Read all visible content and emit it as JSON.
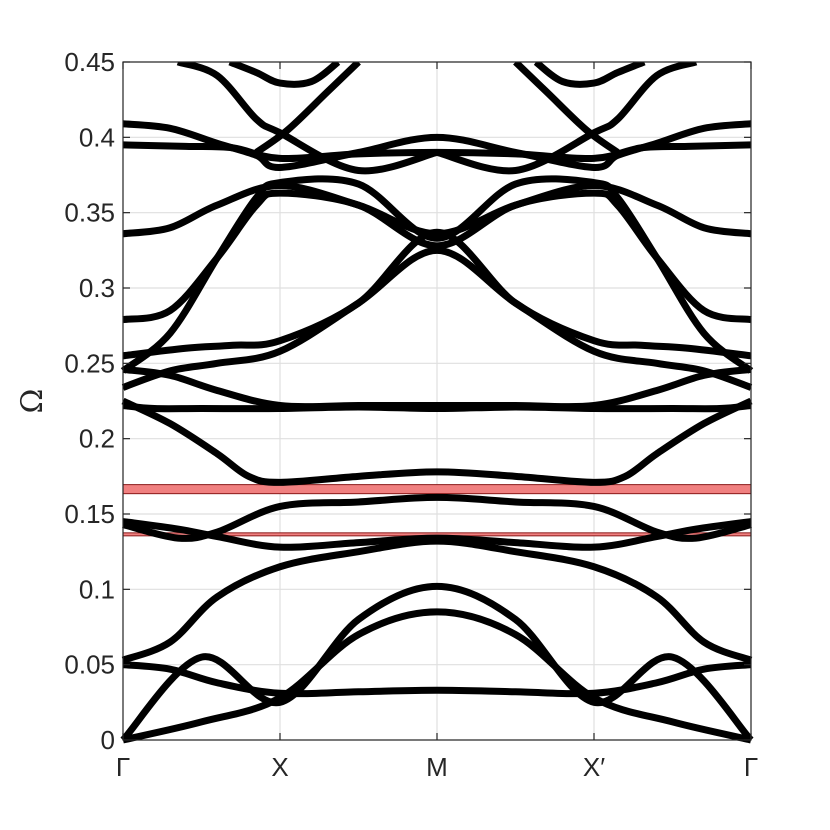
{
  "chart_data": {
    "type": "line",
    "title": "",
    "xlabel": "",
    "ylabel": "Ω",
    "ylim": [
      0,
      0.45
    ],
    "yticks": [
      {
        "value": 0,
        "label": "0"
      },
      {
        "value": 0.05,
        "label": "0.05"
      },
      {
        "value": 0.1,
        "label": "0.1"
      },
      {
        "value": 0.15,
        "label": "0.15"
      },
      {
        "value": 0.2,
        "label": "0.2"
      },
      {
        "value": 0.25,
        "label": "0.25"
      },
      {
        "value": 0.3,
        "label": "0.3"
      },
      {
        "value": 0.35,
        "label": "0.35"
      },
      {
        "value": 0.4,
        "label": "0.4"
      },
      {
        "value": 0.45,
        "label": "0.45"
      }
    ],
    "xticks": [
      {
        "value": 0,
        "label": "Γ"
      },
      {
        "value": 1,
        "label": "X"
      },
      {
        "value": 2,
        "label": "M"
      },
      {
        "value": 3,
        "label": "X′"
      },
      {
        "value": 4,
        "label": "Γ"
      }
    ],
    "xlim": [
      0,
      4
    ],
    "grid": true,
    "band_gaps": [
      {
        "ymin": 0.1635,
        "ymax": 0.1695,
        "color": "#f08080"
      },
      {
        "ymin": 0.1355,
        "ymax": 0.1375,
        "color": "#f08080"
      }
    ],
    "line_color": "#000000",
    "series": [
      {
        "x": [
          0,
          0.5,
          1,
          1.5,
          2,
          2.5,
          3,
          3.5,
          4
        ],
        "y": [
          0,
          0.012,
          0.028,
          0.07,
          0.085,
          0.07,
          0.028,
          0.012,
          0
        ]
      },
      {
        "x": [
          0,
          0.5,
          1,
          1.5,
          2,
          2.5,
          3,
          3.5,
          4
        ],
        "y": [
          0,
          0.055,
          0.025,
          0.08,
          0.102,
          0.08,
          0.025,
          0.055,
          0
        ]
      },
      {
        "x": [
          0,
          0.3,
          0.6,
          1,
          1.5,
          2,
          2.5,
          3,
          3.4,
          3.7,
          4
        ],
        "y": [
          0.05,
          0.047,
          0.038,
          0.031,
          0.032,
          0.033,
          0.032,
          0.031,
          0.038,
          0.047,
          0.05
        ]
      },
      {
        "x": [
          0,
          0.3,
          0.6,
          1,
          1.5,
          2,
          2.5,
          3,
          3.4,
          3.7,
          4
        ],
        "y": [
          0.053,
          0.065,
          0.095,
          0.115,
          0.125,
          0.132,
          0.125,
          0.115,
          0.095,
          0.065,
          0.053
        ]
      },
      {
        "x": [
          0,
          0.35,
          0.6,
          1,
          1.5,
          2,
          2.5,
          3,
          3.4,
          3.65,
          4
        ],
        "y": [
          0.145,
          0.14,
          0.135,
          0.128,
          0.131,
          0.134,
          0.131,
          0.128,
          0.135,
          0.14,
          0.145
        ]
      },
      {
        "x": [
          0,
          0.35,
          0.6,
          1,
          1.5,
          2,
          2.5,
          3,
          3.4,
          3.65,
          4
        ],
        "y": [
          0.143,
          0.134,
          0.138,
          0.155,
          0.158,
          0.161,
          0.158,
          0.155,
          0.138,
          0.134,
          0.143
        ]
      },
      {
        "x": [
          0,
          0.3,
          0.6,
          0.8,
          1,
          1.5,
          2,
          2.5,
          3,
          3.2,
          3.4,
          3.7,
          4
        ],
        "y": [
          0.225,
          0.21,
          0.19,
          0.175,
          0.171,
          0.175,
          0.178,
          0.175,
          0.171,
          0.175,
          0.19,
          0.21,
          0.225
        ]
      },
      {
        "x": [
          0,
          0.2,
          0.5,
          1,
          1.5,
          2,
          2.5,
          3,
          3.5,
          3.8,
          4
        ],
        "y": [
          0.222,
          0.22,
          0.22,
          0.22,
          0.221,
          0.22,
          0.221,
          0.22,
          0.22,
          0.22,
          0.222
        ]
      },
      {
        "x": [
          0,
          0.3,
          0.6,
          1,
          1.5,
          2,
          2.5,
          3,
          3.4,
          3.7,
          4
        ],
        "y": [
          0.246,
          0.242,
          0.232,
          0.222,
          0.222,
          0.222,
          0.222,
          0.222,
          0.232,
          0.242,
          0.246
        ]
      },
      {
        "x": [
          0,
          0.3,
          0.6,
          1,
          1.5,
          2,
          2.5,
          3,
          3.4,
          3.7,
          4
        ],
        "y": [
          0.234,
          0.245,
          0.25,
          0.258,
          0.29,
          0.325,
          0.29,
          0.258,
          0.25,
          0.245,
          0.234
        ]
      },
      {
        "x": [
          0,
          0.4,
          0.7,
          1,
          1.5,
          2,
          2.5,
          3,
          3.3,
          3.6,
          4
        ],
        "y": [
          0.255,
          0.26,
          0.262,
          0.265,
          0.29,
          0.337,
          0.29,
          0.265,
          0.262,
          0.26,
          0.255
        ]
      },
      {
        "x": [
          0,
          0.3,
          0.6,
          0.85,
          1,
          1.5,
          2,
          2.5,
          3,
          3.15,
          3.4,
          3.7,
          4
        ],
        "y": [
          0.279,
          0.285,
          0.32,
          0.355,
          0.363,
          0.355,
          0.328,
          0.355,
          0.363,
          0.355,
          0.32,
          0.285,
          0.279
        ]
      },
      {
        "x": [
          0,
          0.3,
          0.6,
          0.85,
          1,
          1.5,
          2,
          2.5,
          3,
          3.15,
          3.4,
          3.7,
          4
        ],
        "y": [
          0.245,
          0.27,
          0.32,
          0.36,
          0.37,
          0.369,
          0.333,
          0.369,
          0.37,
          0.36,
          0.32,
          0.27,
          0.245
        ]
      },
      {
        "x": [
          0,
          0.3,
          0.6,
          1,
          1.5,
          2,
          2.5,
          3,
          3.4,
          3.7,
          4
        ],
        "y": [
          0.336,
          0.34,
          0.355,
          0.368,
          0.355,
          0.336,
          0.355,
          0.368,
          0.355,
          0.34,
          0.336
        ]
      },
      {
        "x": [
          0,
          0.4,
          0.7,
          1,
          1.5,
          2,
          2.5,
          3,
          3.3,
          3.6,
          4
        ],
        "y": [
          0.395,
          0.394,
          0.393,
          0.386,
          0.389,
          0.39,
          0.389,
          0.386,
          0.393,
          0.394,
          0.395
        ]
      },
      {
        "x": [
          0,
          0.3,
          0.6,
          0.85,
          1,
          1.5,
          2,
          2.5,
          3,
          3.15,
          3.4,
          3.7,
          4
        ],
        "y": [
          0.409,
          0.406,
          0.396,
          0.388,
          0.38,
          0.39,
          0.4,
          0.39,
          0.38,
          0.388,
          0.396,
          0.406,
          0.409
        ]
      },
      {
        "x": [
          0.35,
          0.6,
          0.85,
          1,
          1.5,
          2
        ],
        "y": [
          0.45,
          0.441,
          0.412,
          0.403,
          0.378,
          0.39
        ]
      },
      {
        "x": [
          2,
          2.5,
          3,
          3.15,
          3.4,
          3.65
        ],
        "y": [
          0.39,
          0.378,
          0.403,
          0.412,
          0.441,
          0.45
        ]
      },
      {
        "x": [
          0.68,
          0.85,
          1,
          1.2,
          1.37
        ],
        "y": [
          0.45,
          0.443,
          0.436,
          0.437,
          0.45
        ]
      },
      {
        "x": [
          2.63,
          2.8,
          3,
          3.15,
          3.32
        ],
        "y": [
          0.45,
          0.437,
          0.436,
          0.443,
          0.45
        ]
      },
      {
        "x": [
          0.85,
          1.05,
          1.3,
          1.5
        ],
        "y": [
          0.39,
          0.405,
          0.43,
          0.45
        ]
      },
      {
        "x": [
          2.5,
          2.7,
          2.95,
          3.15
        ],
        "y": [
          0.45,
          0.43,
          0.405,
          0.39
        ]
      }
    ]
  }
}
